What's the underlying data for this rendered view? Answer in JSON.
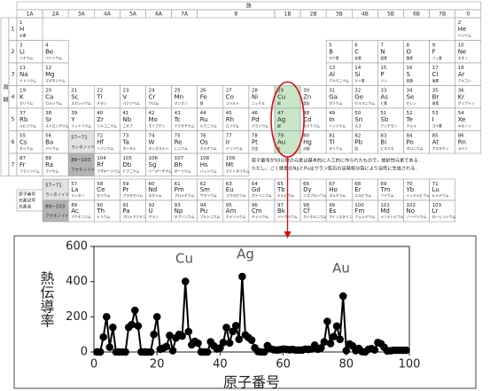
{
  "periodic_table": {
    "header": "族",
    "period_label": "周期",
    "groups": [
      "1A",
      "2A",
      "3A",
      "4A",
      "5A",
      "6A",
      "7A",
      "8",
      "1B",
      "2B",
      "3B",
      "4B",
      "5B",
      "6B",
      "7B",
      "0"
    ],
    "periods": [
      1,
      2,
      3,
      4,
      5,
      6,
      7
    ],
    "key": [
      "原子番号",
      "元素記号",
      "元素名"
    ],
    "lanthanoid": {
      "range": "57~71",
      "name": "ランタノイド",
      "fill": "#e2e2e2"
    },
    "actinoid": {
      "range": "89~103",
      "name": "アクチノイド",
      "fill": "#b4b4b4"
    },
    "note": [
      "原子番号が93以降の元素は基本的に人工的に作られたもので，放射性元素である．",
      "ただし，ごく微量のNpとPuはウラン鉱石の自発核分裂により自然に生成される．"
    ],
    "elements": [
      [
        1,
        "H",
        "水素"
      ],
      [
        2,
        "He",
        "ヘリウム"
      ],
      [
        3,
        "Li",
        "リチウム"
      ],
      [
        4,
        "Be",
        "ベリリウム"
      ],
      [
        5,
        "B",
        "ホウ素"
      ],
      [
        6,
        "C",
        "炭素"
      ],
      [
        7,
        "N",
        "窒素"
      ],
      [
        8,
        "O",
        "酸素"
      ],
      [
        9,
        "F",
        "フッ素"
      ],
      [
        10,
        "Ne",
        "ネオン"
      ],
      [
        11,
        "Na",
        "ナトリウム"
      ],
      [
        12,
        "Mg",
        "マグネシウム"
      ],
      [
        13,
        "Al",
        "アルミニウム"
      ],
      [
        14,
        "Si",
        "ケイ素"
      ],
      [
        15,
        "P",
        "リン"
      ],
      [
        16,
        "S",
        "硫黄"
      ],
      [
        17,
        "Cl",
        "塩素"
      ],
      [
        18,
        "Ar",
        "アルゴン"
      ],
      [
        19,
        "K",
        "カリウム"
      ],
      [
        20,
        "Ca",
        "カルシウム"
      ],
      [
        21,
        "Sc",
        "スカンジウム"
      ],
      [
        22,
        "Ti",
        "チタン"
      ],
      [
        23,
        "V",
        "バナジウム"
      ],
      [
        24,
        "Cr",
        "クロム"
      ],
      [
        25,
        "Mn",
        "マンガン"
      ],
      [
        26,
        "Fe",
        "鉄"
      ],
      [
        27,
        "Co",
        "コバルト"
      ],
      [
        28,
        "Ni",
        "ニッケル"
      ],
      [
        29,
        "Cu",
        "銅",
        "#c9e6c9"
      ],
      [
        30,
        "Zn",
        "亜鉛"
      ],
      [
        31,
        "Ga",
        "ガリウム"
      ],
      [
        32,
        "Ge",
        "ゲルマニウム"
      ],
      [
        33,
        "As",
        "ヒ素"
      ],
      [
        34,
        "Se",
        "セレン"
      ],
      [
        35,
        "Br",
        "臭素"
      ],
      [
        36,
        "Kr",
        "クリプトン"
      ],
      [
        37,
        "Rb",
        "ルビジウム"
      ],
      [
        38,
        "Sr",
        "ストロンチウム"
      ],
      [
        39,
        "Y",
        "イットリウム"
      ],
      [
        40,
        "Zr",
        "ジルコニウム"
      ],
      [
        41,
        "Nb",
        "ニオブ"
      ],
      [
        42,
        "Mo",
        "モリブデン"
      ],
      [
        43,
        "Tc",
        "テクネチウム"
      ],
      [
        44,
        "Ru",
        "ルテニウム"
      ],
      [
        45,
        "Rh",
        "ロジウム"
      ],
      [
        46,
        "Pd",
        "パラジウム"
      ],
      [
        47,
        "Ag",
        "銀",
        "#c9e6c9"
      ],
      [
        48,
        "Cd",
        "カドミウム"
      ],
      [
        49,
        "In",
        "インジウム"
      ],
      [
        50,
        "Sn",
        "スズ"
      ],
      [
        51,
        "Sb",
        "アンチモン"
      ],
      [
        52,
        "Te",
        "テルル"
      ],
      [
        53,
        "I",
        "ヨウ素"
      ],
      [
        54,
        "Xe",
        "キセノン"
      ],
      [
        55,
        "Cs",
        "セシウム"
      ],
      [
        56,
        "Ba",
        "バリウム"
      ],
      [
        57,
        "La",
        "ランタン"
      ],
      [
        58,
        "Ce",
        "セリウム"
      ],
      [
        59,
        "Pr",
        "プラセオジム"
      ],
      [
        60,
        "Nd",
        "ネオジム"
      ],
      [
        61,
        "Pm",
        "プロメチウム"
      ],
      [
        62,
        "Sm",
        "サマリウム"
      ],
      [
        63,
        "Eu",
        "ユウロピウム"
      ],
      [
        64,
        "Gd",
        "ガドリニウム"
      ],
      [
        65,
        "Tb",
        "テルビウム"
      ],
      [
        66,
        "Dy",
        "ジスプロシウム"
      ],
      [
        67,
        "Ho",
        "ホルミウム"
      ],
      [
        68,
        "Er",
        "エルビウム"
      ],
      [
        69,
        "Tm",
        "ツリウム"
      ],
      [
        70,
        "Yb",
        "イッテルビウム"
      ],
      [
        71,
        "Lu",
        "ルテチウム"
      ],
      [
        72,
        "Hf",
        "ハフニウム"
      ],
      [
        73,
        "Ta",
        "タンタル"
      ],
      [
        74,
        "W",
        "タングステン"
      ],
      [
        75,
        "Re",
        "レニウム"
      ],
      [
        76,
        "Os",
        "オスミウム"
      ],
      [
        77,
        "Ir",
        "イリジウム"
      ],
      [
        78,
        "Pt",
        "白金"
      ],
      [
        79,
        "Au",
        "金",
        "#c9e6c9"
      ],
      [
        80,
        "Hg",
        "水銀"
      ],
      [
        81,
        "Tl",
        "タリウム"
      ],
      [
        82,
        "Pb",
        "鉛"
      ],
      [
        83,
        "Bi",
        "ビスマス"
      ],
      [
        84,
        "Po",
        "ポロニウム"
      ],
      [
        85,
        "At",
        "アスタチン"
      ],
      [
        86,
        "Rn",
        "ラドン"
      ],
      [
        87,
        "Fr",
        "フランシウム"
      ],
      [
        88,
        "Ra",
        "ラジウム"
      ],
      [
        89,
        "Ac",
        "アクチニウム"
      ],
      [
        90,
        "Th",
        "トリウム"
      ],
      [
        91,
        "Pa",
        "プロトアクチニウム"
      ],
      [
        92,
        "U",
        "ウラン"
      ],
      [
        93,
        "Np",
        "ネプツニウム"
      ],
      [
        94,
        "Pu",
        "プルトニウム"
      ],
      [
        95,
        "Am",
        "アメリシウム"
      ],
      [
        96,
        "Cm",
        "キュリウム"
      ],
      [
        97,
        "Bk",
        "バークリウム"
      ],
      [
        98,
        "Cf",
        "カリホルニウム"
      ],
      [
        99,
        "Es",
        "アインスタイニウム"
      ],
      [
        100,
        "Fm",
        "フェルミウム"
      ],
      [
        101,
        "Md",
        "メンデレビウム"
      ],
      [
        102,
        "No",
        "ノーベリウム"
      ],
      [
        103,
        "Lr",
        "ローレンシウム"
      ],
      [
        104,
        "Rf",
        "ラザホージウム"
      ],
      [
        105,
        "Db",
        "ドブニウム"
      ],
      [
        106,
        "Sg",
        "シーボーギウム"
      ],
      [
        107,
        "Bh",
        "ボーリウム"
      ],
      [
        108,
        "Hs",
        "ハッシウム"
      ],
      [
        109,
        "Mt",
        "マイトネリウム"
      ]
    ]
  },
  "chart_data": {
    "type": "line",
    "xlabel": "原子番号",
    "ylabel": "熱伝導率",
    "annotations": [
      "Cu",
      "Ag",
      "Au"
    ],
    "xlim": [
      0,
      100
    ],
    "ylim": [
      0,
      600
    ],
    "xticks": [
      0,
      20,
      40,
      60,
      80,
      100
    ],
    "yticks": [
      0,
      200,
      400,
      600
    ],
    "x": [
      1,
      2,
      3,
      4,
      5,
      6,
      7,
      8,
      9,
      10,
      11,
      12,
      13,
      14,
      15,
      16,
      17,
      18,
      19,
      20,
      21,
      22,
      23,
      24,
      25,
      26,
      27,
      28,
      29,
      30,
      31,
      32,
      33,
      34,
      35,
      36,
      37,
      38,
      39,
      40,
      41,
      42,
      43,
      44,
      45,
      46,
      47,
      48,
      49,
      50,
      51,
      52,
      53,
      54,
      55,
      56,
      57,
      58,
      59,
      60,
      61,
      62,
      63,
      64,
      65,
      66,
      67,
      68,
      69,
      70,
      71,
      72,
      73,
      74,
      75,
      76,
      77,
      78,
      79,
      80,
      81,
      82,
      83,
      84,
      85,
      86,
      87,
      88,
      89,
      90,
      91,
      92,
      93,
      94,
      95,
      96,
      97,
      98,
      99
    ],
    "series": [
      {
        "color": "#000000",
        "values": [
          0.18,
          0.15,
          85,
          200,
          27,
          140,
          0.03,
          0.03,
          0.03,
          0.05,
          140,
          156,
          237,
          148,
          0.24,
          0.2,
          0.01,
          0.02,
          100,
          200,
          16,
          22,
          31,
          94,
          8,
          80,
          100,
          91,
          401,
          116,
          41,
          60,
          50,
          0.5,
          0.1,
          0.01,
          58,
          35,
          17,
          23,
          54,
          139,
          51,
          117,
          150,
          72,
          429,
          97,
          82,
          67,
          24,
          3,
          0.4,
          0.01,
          36,
          18,
          13,
          11,
          13,
          17,
          15,
          13,
          14,
          11,
          11,
          11,
          16,
          15,
          17,
          39,
          16,
          23,
          57,
          174,
          48,
          88,
          147,
          72,
          318,
          8,
          46,
          35,
          8,
          20,
          2,
          0.004,
          15,
          19,
          12,
          54,
          47,
          27,
          6,
          7,
          10,
          10,
          10,
          10,
          10
        ]
      }
    ],
    "highlight_color": "#d01010"
  }
}
